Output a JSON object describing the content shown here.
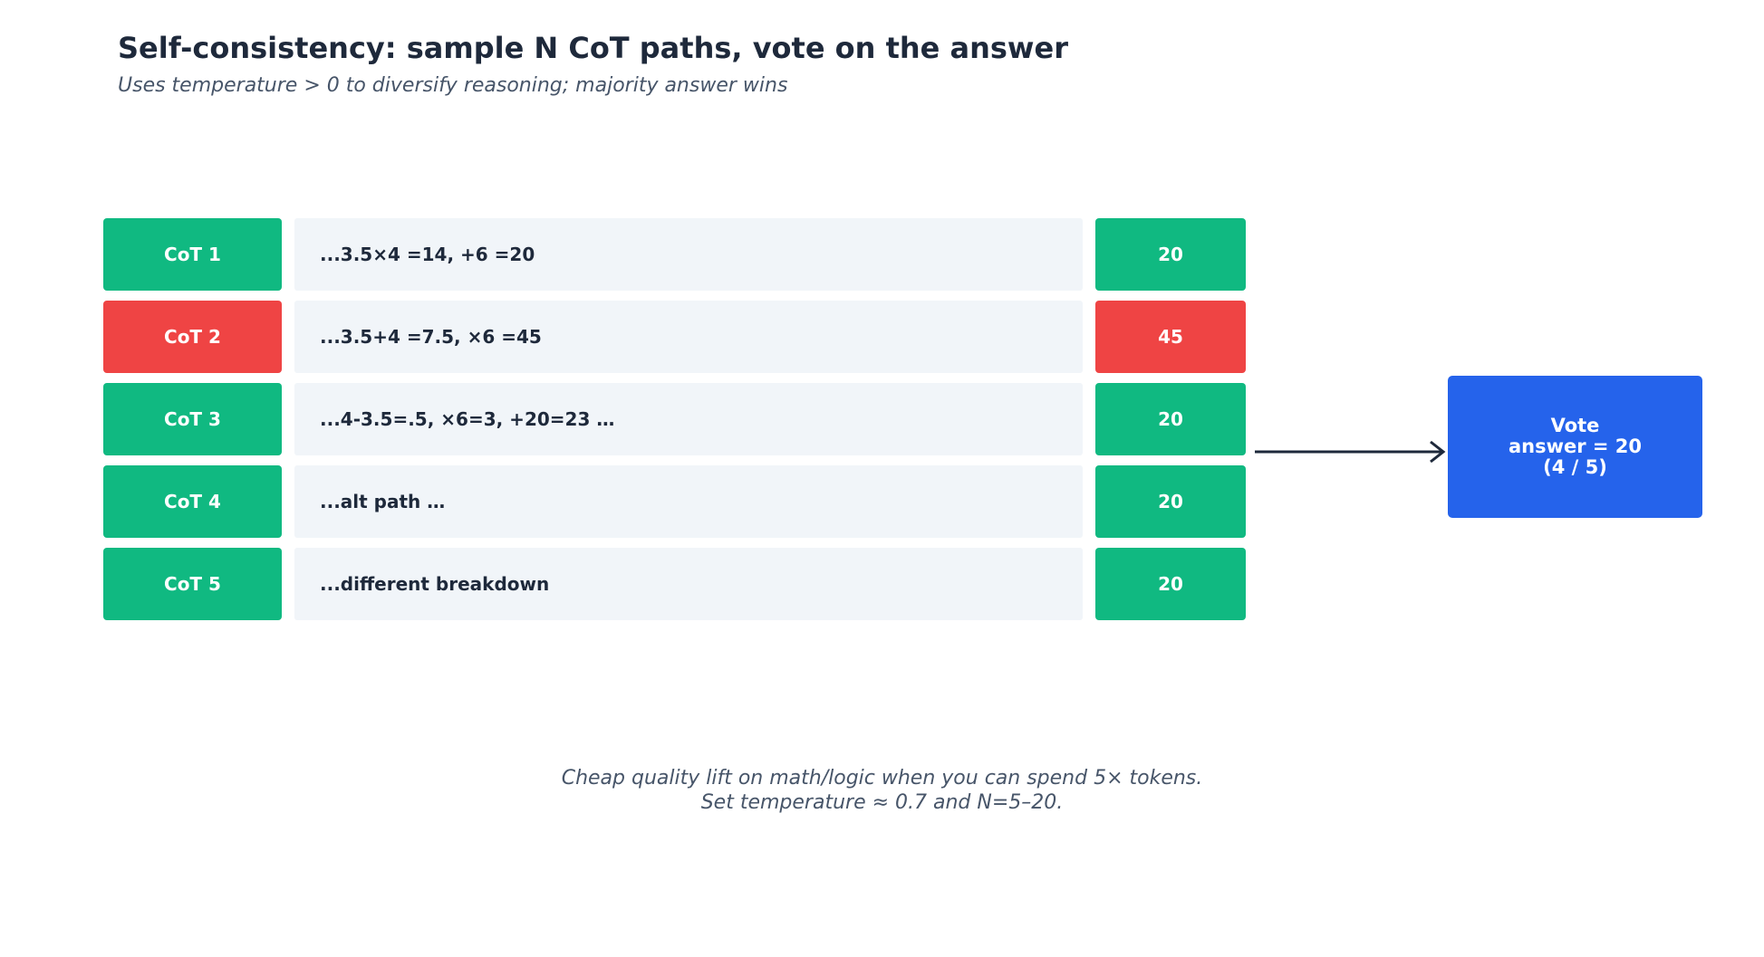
{
  "title": "Self-consistency: sample N CoT paths, vote on the answer",
  "subtitle": "Uses temperature > 0 to diversify reasoning; majority answer wins",
  "colors": {
    "correct": "#10b981",
    "wrong": "#ef4444",
    "vote": "#2563eb",
    "reason_bg": "#f1f5f9",
    "text": "#1e293b",
    "muted": "#475569"
  },
  "paths": [
    {
      "label": "CoT 1",
      "reasoning": "...3.5×4 =14, +6 =20",
      "answer": "20",
      "status": "correct"
    },
    {
      "label": "CoT 2",
      "reasoning": "...3.5+4 =7.5, ×6 =45",
      "answer": "45",
      "status": "wrong"
    },
    {
      "label": "CoT 3",
      "reasoning": "...4-3.5=.5, ×6=3, +20=23 …",
      "answer": "20",
      "status": "correct"
    },
    {
      "label": "CoT 4",
      "reasoning": "...alt path …",
      "answer": "20",
      "status": "correct"
    },
    {
      "label": "CoT 5",
      "reasoning": "...different breakdown",
      "answer": "20",
      "status": "correct"
    }
  ],
  "vote": {
    "line1": "Vote",
    "line2": "answer = 20",
    "line3": "(4 / 5)"
  },
  "footer": {
    "line1": "Cheap quality lift on math/logic when you can spend 5× tokens.",
    "line2": "Set temperature ≈ 0.7 and N=5–20."
  }
}
